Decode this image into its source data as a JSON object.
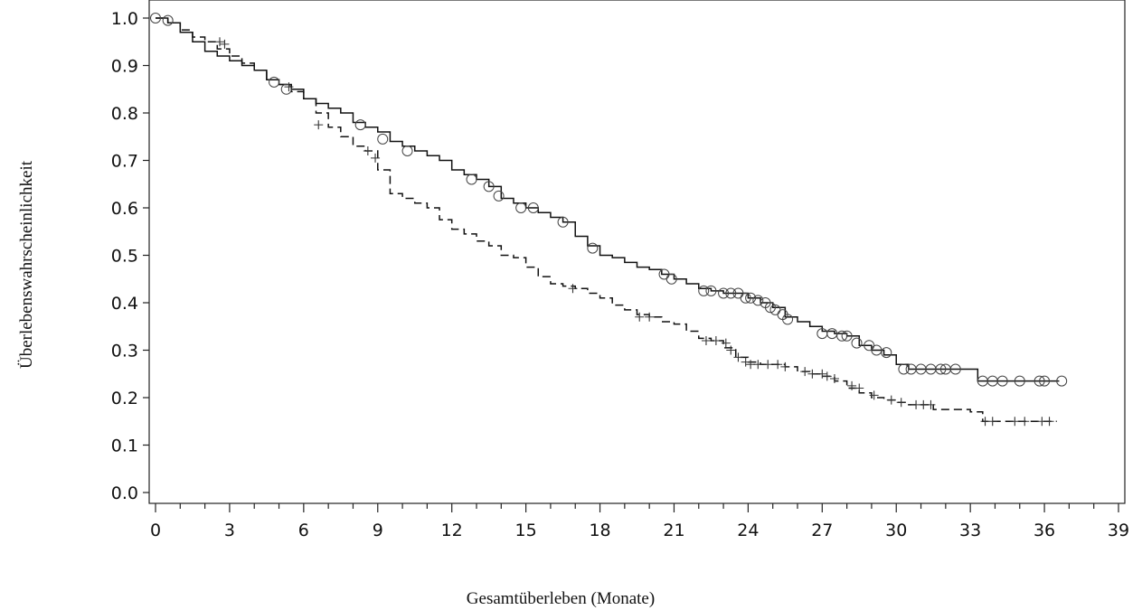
{
  "chart_data": {
    "type": "line",
    "title": "",
    "xlabel": "Gesamtüberleben (Monate)",
    "ylabel": "Überlebenswahrscheinlichkeit",
    "xlim": [
      0,
      39
    ],
    "ylim": [
      0,
      1.0
    ],
    "x_ticks": [
      0,
      3,
      6,
      9,
      12,
      15,
      18,
      21,
      24,
      27,
      30,
      33,
      36,
      39
    ],
    "y_ticks": [
      0.0,
      0.1,
      0.2,
      0.3,
      0.4,
      0.5,
      0.6,
      0.7,
      0.8,
      0.9,
      1.0
    ],
    "grid": false,
    "legend": "none",
    "series": [
      {
        "line_style": "solid",
        "censor_marker": "circle",
        "x": [
          0,
          0.5,
          1,
          1.5,
          2,
          2.5,
          3,
          3.5,
          4,
          4.5,
          5,
          5.5,
          6,
          6.5,
          7,
          7.5,
          8,
          8.5,
          9,
          9.5,
          10,
          10.5,
          11,
          11.5,
          12,
          12.5,
          13,
          13.5,
          14,
          14.5,
          15,
          15.5,
          16,
          16.5,
          17,
          17.5,
          18,
          18.5,
          19,
          19.5,
          20,
          20.5,
          21,
          21.5,
          22,
          22.5,
          23,
          23.5,
          24,
          24.5,
          25,
          25.5,
          26,
          26.5,
          27,
          27.5,
          28,
          28.5,
          29,
          29.5,
          30,
          30.5,
          31,
          31.5,
          32,
          32.5,
          33,
          33.3,
          34,
          35,
          36,
          36.6
        ],
        "y": [
          1.0,
          0.99,
          0.97,
          0.95,
          0.93,
          0.92,
          0.91,
          0.9,
          0.89,
          0.87,
          0.86,
          0.85,
          0.83,
          0.82,
          0.81,
          0.8,
          0.78,
          0.77,
          0.76,
          0.74,
          0.73,
          0.72,
          0.71,
          0.7,
          0.68,
          0.67,
          0.66,
          0.645,
          0.62,
          0.61,
          0.6,
          0.59,
          0.58,
          0.57,
          0.54,
          0.52,
          0.5,
          0.495,
          0.485,
          0.475,
          0.47,
          0.46,
          0.45,
          0.44,
          0.43,
          0.425,
          0.42,
          0.42,
          0.41,
          0.4,
          0.39,
          0.37,
          0.36,
          0.35,
          0.34,
          0.335,
          0.33,
          0.31,
          0.3,
          0.29,
          0.27,
          0.26,
          0.26,
          0.26,
          0.26,
          0.26,
          0.26,
          0.235,
          0.235,
          0.235,
          0.235,
          0.235
        ],
        "censored_x": [
          0,
          0.5,
          4.8,
          5.3,
          8.3,
          9.2,
          10.2,
          12.8,
          13.5,
          13.9,
          14.8,
          15.3,
          16.5,
          17.7,
          20.6,
          20.9,
          22.2,
          22.5,
          23.0,
          23.3,
          23.6,
          23.9,
          24.1,
          24.4,
          24.7,
          24.9,
          25.1,
          25.4,
          25.6,
          27.0,
          27.4,
          27.8,
          28.0,
          28.4,
          28.9,
          29.2,
          29.6,
          30.3,
          30.6,
          31.0,
          31.4,
          31.8,
          32.0,
          32.4,
          33.5,
          33.9,
          34.3,
          35.0,
          35.8,
          36.0,
          36.7
        ],
        "censored_y": [
          1.0,
          0.995,
          0.865,
          0.85,
          0.775,
          0.745,
          0.72,
          0.66,
          0.645,
          0.625,
          0.6,
          0.6,
          0.57,
          0.515,
          0.46,
          0.45,
          0.425,
          0.425,
          0.42,
          0.42,
          0.42,
          0.41,
          0.41,
          0.405,
          0.4,
          0.39,
          0.385,
          0.375,
          0.365,
          0.335,
          0.335,
          0.33,
          0.33,
          0.315,
          0.31,
          0.3,
          0.295,
          0.26,
          0.26,
          0.26,
          0.26,
          0.26,
          0.26,
          0.26,
          0.235,
          0.235,
          0.235,
          0.235,
          0.235,
          0.235,
          0.235
        ]
      },
      {
        "line_style": "dashed",
        "censor_marker": "plus",
        "x": [
          0,
          0.5,
          1,
          1.5,
          2,
          2.5,
          3,
          3.5,
          4,
          4.5,
          5,
          5.5,
          6,
          6.5,
          7,
          7.5,
          8,
          8.5,
          9,
          9.5,
          10,
          10.5,
          11,
          11.5,
          12,
          12.5,
          13,
          13.5,
          14,
          14.5,
          15,
          15.5,
          16,
          16.5,
          17,
          17.5,
          18,
          18.5,
          19,
          19.5,
          20,
          20.5,
          21,
          21.5,
          22,
          22.5,
          23,
          23.5,
          24,
          24.5,
          25,
          25.5,
          26,
          26.5,
          27,
          27.5,
          28,
          28.5,
          29,
          29.5,
          30,
          30.5,
          31,
          31.5,
          32,
          32.5,
          33,
          33.5,
          34,
          35,
          36,
          36.5
        ],
        "y": [
          1.0,
          0.99,
          0.975,
          0.96,
          0.95,
          0.935,
          0.92,
          0.905,
          0.89,
          0.87,
          0.86,
          0.845,
          0.83,
          0.8,
          0.77,
          0.75,
          0.73,
          0.72,
          0.68,
          0.63,
          0.62,
          0.61,
          0.6,
          0.575,
          0.555,
          0.545,
          0.53,
          0.52,
          0.5,
          0.495,
          0.475,
          0.455,
          0.44,
          0.435,
          0.43,
          0.42,
          0.41,
          0.395,
          0.385,
          0.375,
          0.37,
          0.36,
          0.355,
          0.34,
          0.325,
          0.32,
          0.305,
          0.285,
          0.275,
          0.27,
          0.27,
          0.265,
          0.255,
          0.25,
          0.245,
          0.235,
          0.22,
          0.21,
          0.2,
          0.195,
          0.19,
          0.185,
          0.185,
          0.175,
          0.175,
          0.175,
          0.17,
          0.15,
          0.15,
          0.15,
          0.15,
          0.15
        ],
        "censored_x": [
          2.6,
          2.8,
          5.4,
          6.6,
          8.6,
          8.9,
          16.9,
          19.6,
          20.0,
          22.3,
          22.7,
          23.1,
          23.3,
          23.6,
          23.9,
          24.1,
          24.4,
          24.8,
          25.2,
          25.5,
          26.3,
          26.6,
          27.0,
          27.2,
          27.5,
          28.2,
          28.5,
          29.1,
          29.8,
          30.2,
          30.8,
          31.1,
          31.4,
          33.6,
          33.9,
          34.8,
          35.2,
          35.9,
          36.2
        ],
        "censored_y": [
          0.95,
          0.945,
          0.855,
          0.775,
          0.72,
          0.705,
          0.43,
          0.37,
          0.37,
          0.32,
          0.32,
          0.315,
          0.3,
          0.285,
          0.275,
          0.27,
          0.27,
          0.27,
          0.27,
          0.265,
          0.255,
          0.25,
          0.25,
          0.245,
          0.24,
          0.225,
          0.22,
          0.205,
          0.195,
          0.19,
          0.185,
          0.185,
          0.185,
          0.15,
          0.15,
          0.15,
          0.15,
          0.15,
          0.15
        ]
      }
    ]
  }
}
